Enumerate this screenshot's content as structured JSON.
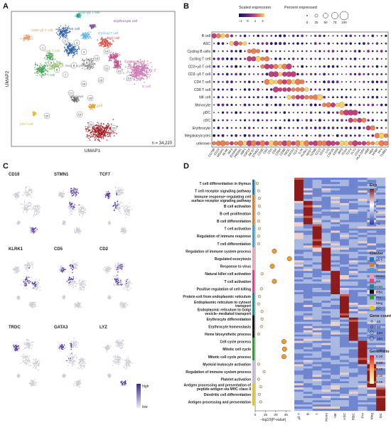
{
  "panels": {
    "a": "A",
    "b": "B",
    "c": "C",
    "d": "D"
  },
  "chart_data": [
    {
      "type": "scatter",
      "panel": "A",
      "xlabel": "UMAP1",
      "ylabel": "UMAP2",
      "annotation": "n = 34,220",
      "clusters": [
        {
          "label": "CD4+γδ T cell",
          "color": "#1f9f8f"
        },
        {
          "label": "CD8+γδ T cell",
          "color": "#e89a6a"
        },
        {
          "label": "NK cell",
          "color": "#2f5fa6"
        },
        {
          "label": "Erythrocyte cell",
          "color": "#7a4a9a"
        },
        {
          "label": "Cycling T cell",
          "color": "#5fb0e0"
        },
        {
          "label": "ASC cell",
          "color": "#d8483e"
        },
        {
          "label": "CD8 T cell",
          "color": "#98c869"
        },
        {
          "label": "Cycling B cell",
          "color": "#c04f86"
        },
        {
          "label": "CD4 T cell",
          "color": "#4aa35a"
        },
        {
          "label": "Megakaryocytes",
          "color": "#8a8a8a"
        },
        {
          "label": "B cell",
          "color": "#c979b0"
        },
        {
          "label": "unknown",
          "color": "#6a6a6a"
        },
        {
          "label": "cDC cell",
          "color": "#e0a030"
        },
        {
          "label": "pDC cell",
          "color": "#d8c030"
        },
        {
          "label": "Monocyte",
          "color": "#a01a22"
        }
      ],
      "cluster_numbers": [
        "1",
        "2",
        "3",
        "4",
        "5",
        "6",
        "7",
        "8",
        "9",
        "10",
        "11",
        "12",
        "13",
        "14",
        "15",
        "16",
        "17",
        "18",
        "19",
        "20",
        "21",
        "22"
      ]
    },
    {
      "type": "scatter",
      "subtype": "dotplot",
      "panel": "B",
      "legend": {
        "color_title": "Scaled expression",
        "color_ticks": [
          "−1",
          "0",
          "1",
          "2"
        ],
        "size_title": "Percent expressed",
        "size_ticks": [
          "0",
          "25",
          "50",
          "75",
          "100"
        ]
      },
      "rows": [
        "B cell",
        "ASC",
        "Cycling B cells",
        "Cycling T cell",
        "CD2+γδ T cell",
        "CD2−γδ T cell",
        "CD4 T cell",
        "CD8 T cell",
        "NK cell",
        "Monocyte",
        "pDC",
        "cDC",
        "Erythrocyte",
        "Megakaryocytes",
        "unknown"
      ],
      "columns": [
        "CD79B",
        "CD19",
        "MS4A1",
        "BLNK",
        "IRF4",
        "JCHAIN",
        "PRDM1",
        "XBP1",
        "TOP2A",
        "MKI67",
        "STMN1",
        "CD3E",
        "CD2",
        "CD5",
        "CD4",
        "CD8A",
        "CD8B",
        "TRDC",
        "GATA3",
        "TCF7",
        "IL7R",
        "KLRK1",
        "NKG7",
        "GZMB",
        "CCL5",
        "CD14",
        "LYZ",
        "CSF1R",
        "CD68",
        "IRF8",
        "PLD4",
        "TCF4",
        "FLT3",
        "CD1C",
        "HLA-DRA",
        "HBB",
        "HBA",
        "PPBP",
        "PF4",
        "TUBB1"
      ],
      "block_markers": {
        "B cell": [
          0,
          4
        ],
        "ASC": [
          4,
          8
        ],
        "Cycling B cells": [
          8,
          11
        ],
        "Cycling T cell": [
          8,
          13
        ],
        "CD2+γδ T cell": [
          11,
          18
        ],
        "CD2−γδ T cell": [
          13,
          19
        ],
        "CD4 T cell": [
          12,
          21
        ],
        "CD8 T cell": [
          14,
          22
        ],
        "NK cell": [
          17,
          25
        ],
        "Monocyte": [
          25,
          30
        ],
        "pDC": [
          29,
          33
        ],
        "cDC": [
          31,
          35
        ],
        "Erythrocyte": [
          35,
          37
        ],
        "Megakaryocytes": [
          37,
          40
        ],
        "unknown": [
          0,
          40
        ]
      }
    },
    {
      "type": "scatter",
      "subtype": "feature_plots",
      "panel": "C",
      "genes": [
        "CD19",
        "STMN1",
        "TCF7",
        "KLRK1",
        "CD5",
        "CD2",
        "TRDC",
        "GATA3",
        "LYZ"
      ],
      "legend": {
        "high": "high",
        "low": "low"
      }
    },
    {
      "type": "scatter",
      "panel": "D",
      "xlabel": "−log10(P-value)",
      "x_ticks": [
        "0",
        "15",
        "30",
        "45"
      ],
      "terms": [
        {
          "term": "T cell differentiation in thymus",
          "value": 3,
          "cluster": "γδ T"
        },
        {
          "term": "T cell receptor signaling pathway",
          "value": 5,
          "cluster": "γδ T"
        },
        {
          "term": "Immune response−regulating cell surface receptor signaling pathway",
          "value": 6,
          "cluster": "B"
        },
        {
          "term": "B cell activation",
          "value": 6,
          "cluster": "B"
        },
        {
          "term": "B cell proliferation",
          "value": 5,
          "cluster": "B"
        },
        {
          "term": "B cell differentiation",
          "value": 5,
          "cluster": "B"
        },
        {
          "term": "T cell activation",
          "value": 6,
          "cluster": "T"
        },
        {
          "term": "Regulation of immune response",
          "value": 5,
          "cluster": "T"
        },
        {
          "term": "T cell differentiation",
          "value": 5,
          "cluster": "T"
        },
        {
          "term": "Regulation of immune system process",
          "value": 28,
          "cluster": "Mono"
        },
        {
          "term": "Regulated exocytosis",
          "value": 50,
          "cluster": "Mono"
        },
        {
          "term": "Response to virus",
          "value": 25,
          "cluster": "Mono"
        },
        {
          "term": "Natural killer cell activation",
          "value": 10,
          "cluster": "NK"
        },
        {
          "term": "T cell activation",
          "value": 28,
          "cluster": "NK"
        },
        {
          "term": "Positive regulation of cell killing",
          "value": 9,
          "cluster": "NK"
        },
        {
          "term": "Protein exit from endoplasmic reticulum",
          "value": 6,
          "cluster": "ASC"
        },
        {
          "term": "Endoplasmic reticulum to cytosol transport",
          "value": 5,
          "cluster": "ASC"
        },
        {
          "term": "Endoplasmic reticulum to Golgi vesicle−mediated transport",
          "value": 10,
          "cluster": "ASC"
        },
        {
          "term": "Erythrocyte differentiation",
          "value": 10,
          "cluster": "RBC"
        },
        {
          "term": "Erythrocyte homeostasis",
          "value": 9,
          "cluster": "RBC"
        },
        {
          "term": "Heme biosynthetic process",
          "value": 5,
          "cluster": "RBC"
        },
        {
          "term": "Cell cycle process",
          "value": 42,
          "cluster": "Pro"
        },
        {
          "term": "Mitotic cell cycle",
          "value": 43,
          "cluster": "Pro"
        },
        {
          "term": "Mitotic cell cycle process",
          "value": 42,
          "cluster": "Pro"
        },
        {
          "term": "Myeloid leukocyte activation",
          "value": 5,
          "cluster": "Meg"
        },
        {
          "term": "Regulation of immune system process",
          "value": 13,
          "cluster": "Meg"
        },
        {
          "term": "Platelet activation",
          "value": 5,
          "cluster": "Meg"
        },
        {
          "term": "Antigen processing and presentation of peptide antigen via MHC class II",
          "value": 8,
          "cluster": "DC"
        },
        {
          "term": "Dendritic cell differentiation",
          "value": 6,
          "cluster": "DC"
        },
        {
          "term": "Antigen processing and presentation",
          "value": 8,
          "cluster": "DC"
        }
      ],
      "heatmap": {
        "columns": [
          "γδ T",
          "B",
          "T",
          "Mono",
          "NK",
          "ASC",
          "RBC",
          "Pro",
          "Meg",
          "DC"
        ],
        "exp_title": "Exp",
        "exp_ticks": [
          "2",
          "1",
          "0",
          "−1"
        ]
      },
      "legend": {
        "cluster_title": "Cluster",
        "clusters": [
          {
            "name": "γδ T",
            "color": "#1f77b4"
          },
          {
            "name": "B",
            "color": "#e07b2c"
          },
          {
            "name": "T",
            "color": "#41a0d8"
          },
          {
            "name": "Mono",
            "color": "#f4a0b0"
          },
          {
            "name": "NK",
            "color": "#e8407a"
          },
          {
            "name": "ASC",
            "color": "#1e8a8a"
          },
          {
            "name": "RBC",
            "color": "#111111"
          },
          {
            "name": "Pro",
            "color": "#2ca02c"
          },
          {
            "name": "Meg",
            "color": "#c7b4e0"
          },
          {
            "name": "DC",
            "color": "#e8c020"
          }
        ],
        "genecount_title": "Gene count",
        "genecount_ticks": [
          "40",
          "80",
          "120",
          "160"
        ],
        "generatio_title": "GeneRatio",
        "generatio_ticks": [
          "0.25",
          "0.20",
          "0.15",
          "0.10",
          "0.05"
        ]
      }
    }
  ]
}
